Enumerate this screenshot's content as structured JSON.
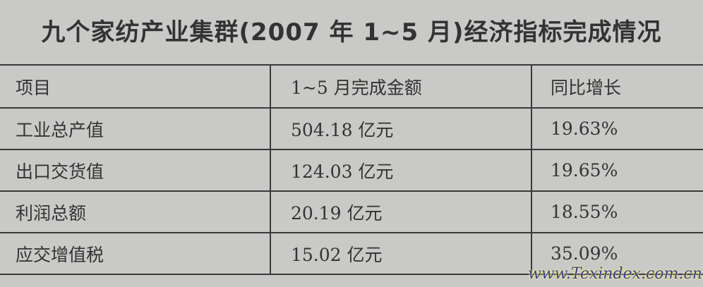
{
  "title": "九个家纺产业集群(2007 年 1~5 月)经济指标完成情况",
  "table": {
    "headers": [
      "项目",
      "1~5 月完成金额",
      "同比增长"
    ],
    "rows": [
      [
        "工业总产值",
        "504.18 亿元",
        "19.63%"
      ],
      [
        "出口交货值",
        "124.03 亿元",
        "19.65%"
      ],
      [
        "利润总额",
        "20.19 亿元",
        "18.55%"
      ],
      [
        "应交增值税",
        "15.02 亿元",
        "35.09%"
      ]
    ]
  },
  "watermark": "www.Texindex.com.cn"
}
